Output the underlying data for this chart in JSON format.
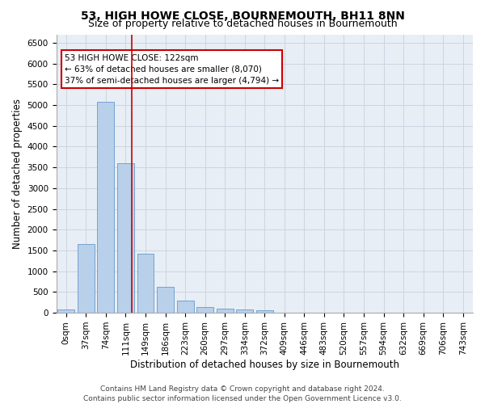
{
  "title": "53, HIGH HOWE CLOSE, BOURNEMOUTH, BH11 8NN",
  "subtitle": "Size of property relative to detached houses in Bournemouth",
  "xlabel": "Distribution of detached houses by size in Bournemouth",
  "ylabel": "Number of detached properties",
  "footer_line1": "Contains HM Land Registry data © Crown copyright and database right 2024.",
  "footer_line2": "Contains public sector information licensed under the Open Government Licence v3.0.",
  "bar_labels": [
    "0sqm",
    "37sqm",
    "74sqm",
    "111sqm",
    "149sqm",
    "186sqm",
    "223sqm",
    "260sqm",
    "297sqm",
    "334sqm",
    "372sqm",
    "409sqm",
    "446sqm",
    "483sqm",
    "520sqm",
    "557sqm",
    "594sqm",
    "632sqm",
    "669sqm",
    "706sqm",
    "743sqm"
  ],
  "bar_values": [
    70,
    1650,
    5070,
    3600,
    1420,
    620,
    290,
    140,
    105,
    80,
    60,
    0,
    0,
    0,
    0,
    0,
    0,
    0,
    0,
    0,
    0
  ],
  "bar_color": "#b8d0ea",
  "bar_edge_color": "#6699cc",
  "vline_x": 3.3,
  "vline_color": "#cc0000",
  "annotation_text": "53 HIGH HOWE CLOSE: 122sqm\n← 63% of detached houses are smaller (8,070)\n37% of semi-detached houses are larger (4,794) →",
  "annotation_box_color": "white",
  "annotation_box_edge_color": "#cc0000",
  "ylim": [
    0,
    6700
  ],
  "yticks": [
    0,
    500,
    1000,
    1500,
    2000,
    2500,
    3000,
    3500,
    4000,
    4500,
    5000,
    5500,
    6000,
    6500
  ],
  "grid_color": "#ccd5e0",
  "background_color": "#e8eef5",
  "title_fontsize": 10,
  "subtitle_fontsize": 9,
  "axis_label_fontsize": 8.5,
  "tick_fontsize": 7.5,
  "annotation_fontsize": 7.5,
  "footer_fontsize": 6.5
}
